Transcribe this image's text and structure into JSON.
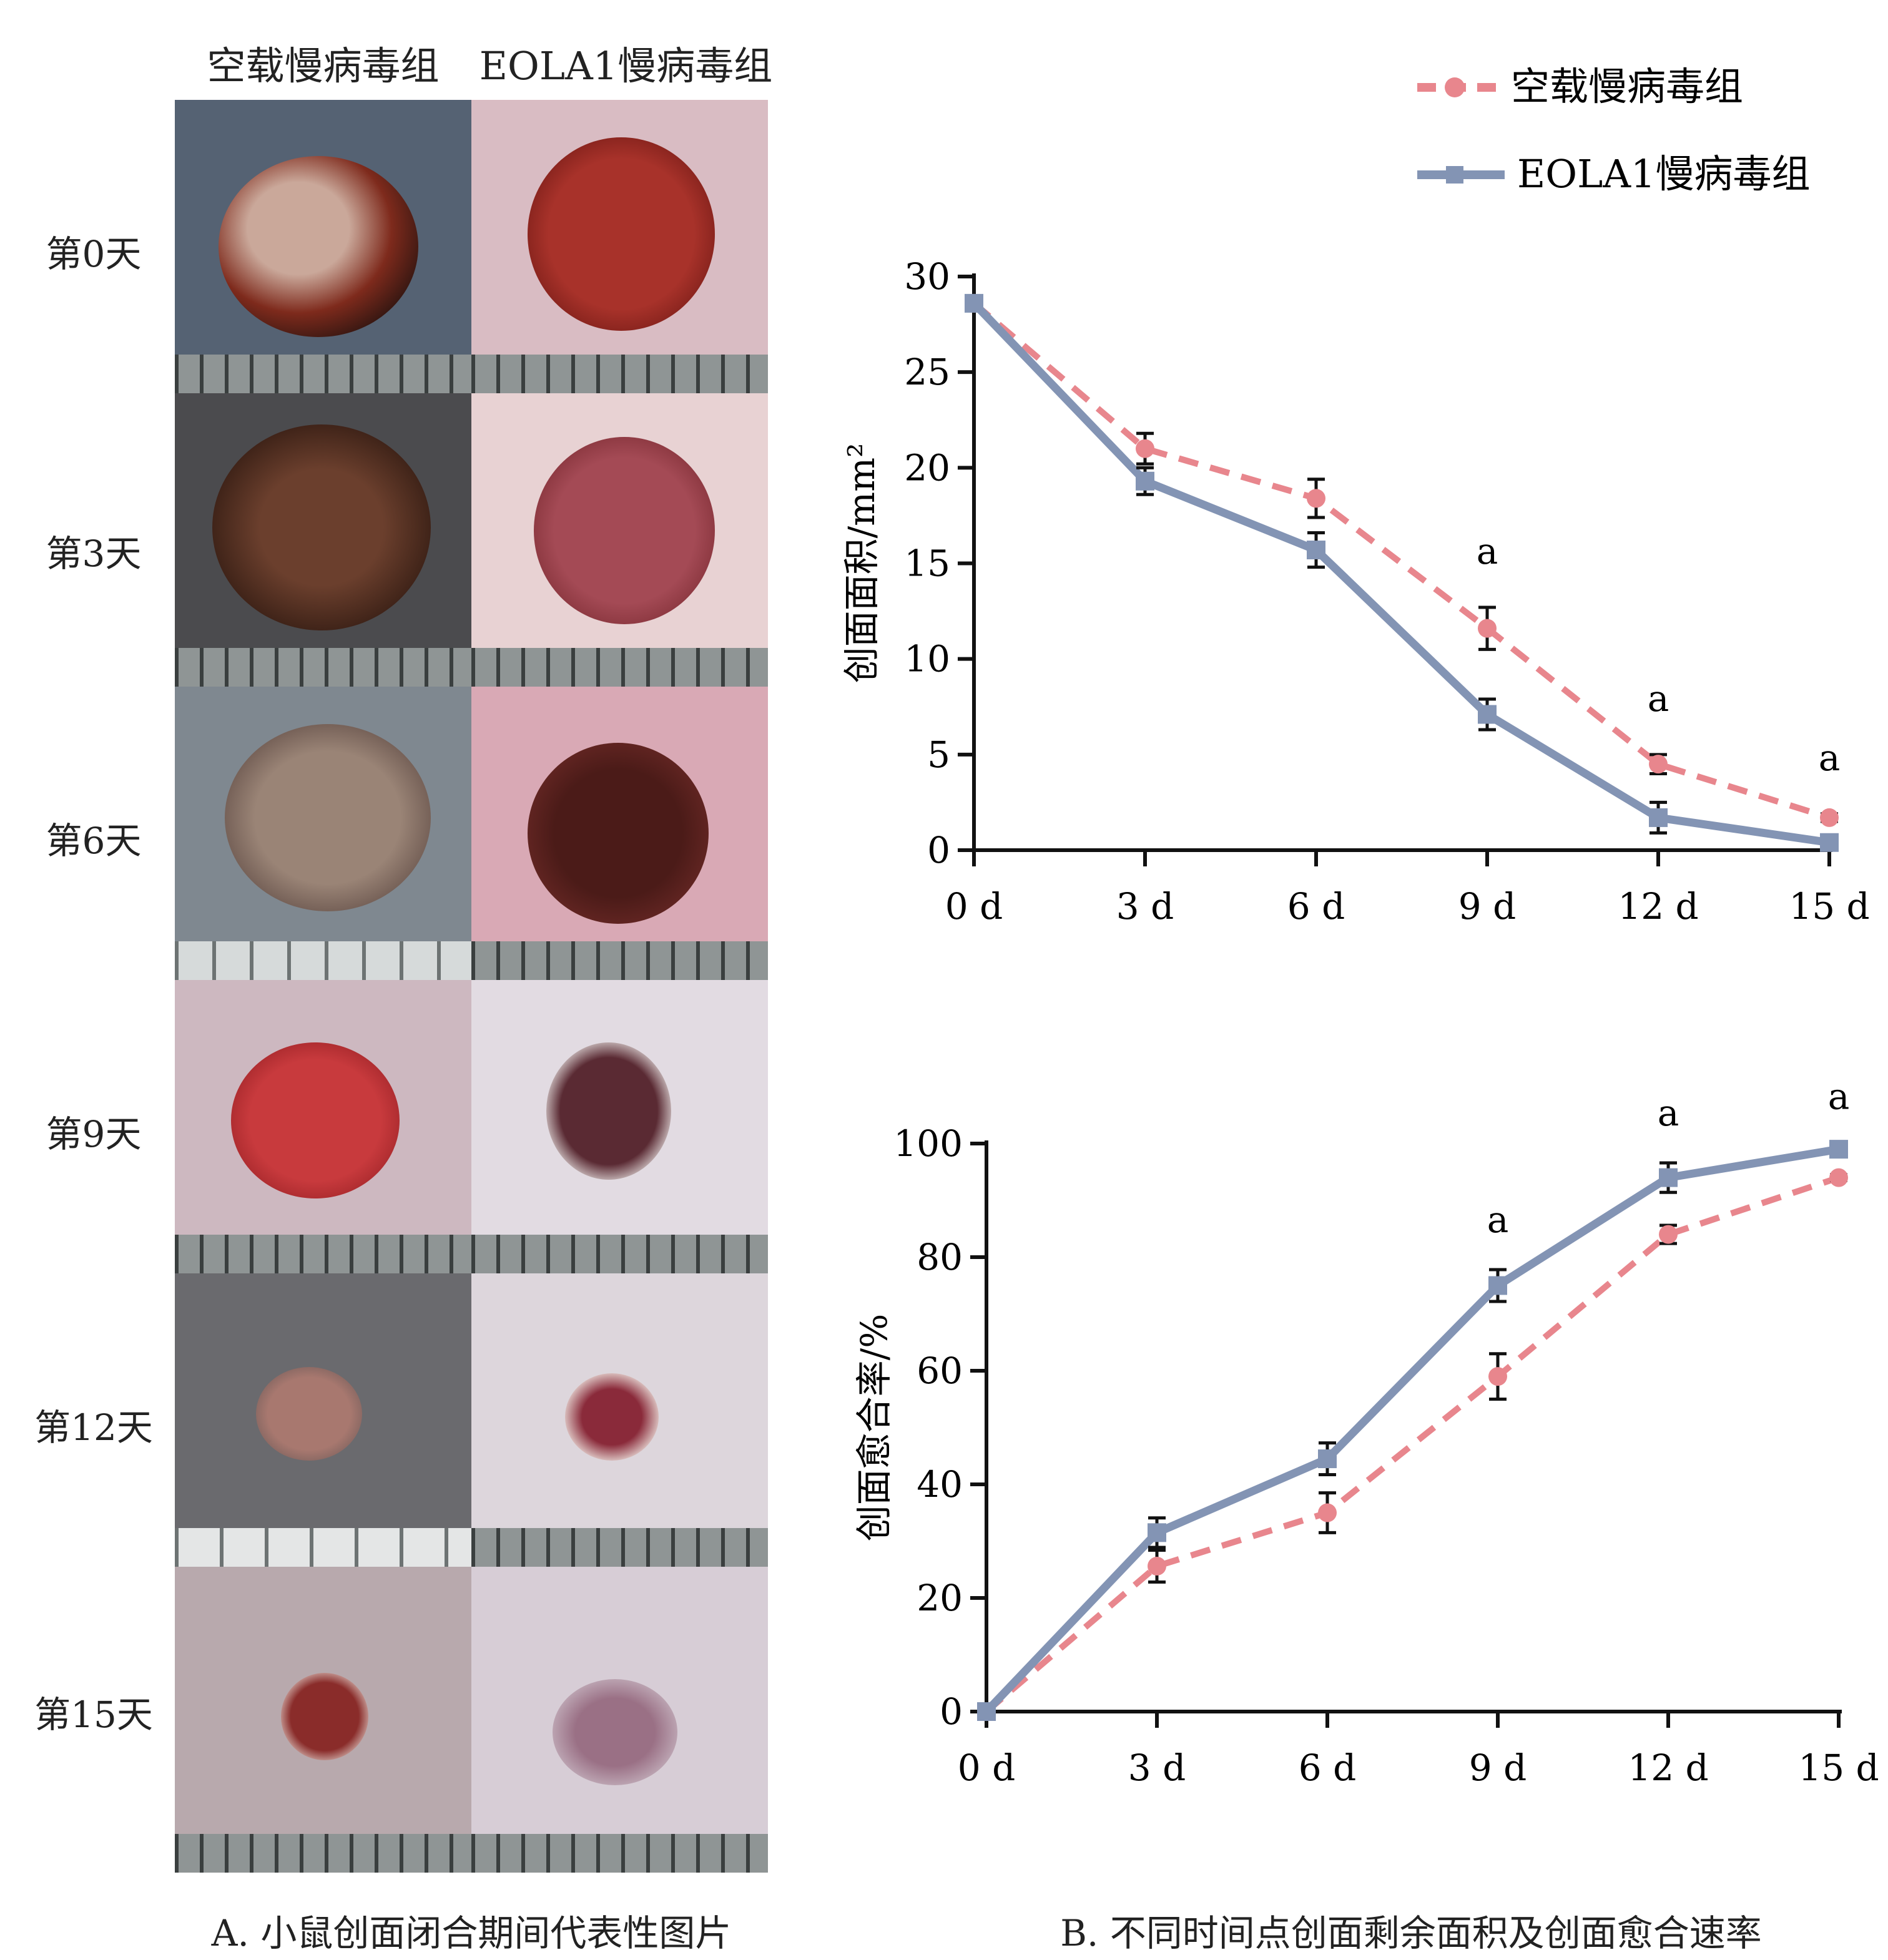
{
  "panel_a": {
    "headers": [
      "空载慢病毒组",
      "EOLA1慢病毒组"
    ],
    "rows": [
      "第0天",
      "第3天",
      "第6天",
      "第9天",
      "第12天",
      "第15天"
    ],
    "caption": "A. 小鼠创面闭合期间代表性图片"
  },
  "panel_b": {
    "caption": "B. 不同时间点创面剩余面积及创面愈合速率"
  },
  "legend": {
    "items": [
      "空载慢病毒组",
      "EOLA1慢病毒组"
    ]
  },
  "colors": {
    "empty_vector": "#e8868d",
    "eola1": "#8394b4",
    "error_bar": "#111111"
  },
  "chart_data": [
    {
      "type": "line",
      "categories": [
        "0 d",
        "3 d",
        "6 d",
        "9 d",
        "12 d",
        "15 d"
      ],
      "ylabel": "创面面积/mm²",
      "ylim": [
        0,
        30
      ],
      "yticks": [
        "0",
        "5",
        "10",
        "15",
        "20",
        "25",
        "30"
      ],
      "series": [
        {
          "name": "空载慢病毒组",
          "values": [
            28.6,
            21.0,
            18.4,
            11.6,
            4.5,
            1.7
          ],
          "errors": [
            0.3,
            0.8,
            1.0,
            1.1,
            0.5,
            0.2
          ],
          "style": "dashed-circle"
        },
        {
          "name": "EOLA1慢病毒组",
          "values": [
            28.6,
            19.3,
            15.7,
            7.1,
            1.7,
            0.4
          ],
          "errors": [
            0.3,
            0.7,
            0.9,
            0.8,
            0.8,
            0.2
          ],
          "style": "solid-square"
        }
      ],
      "annotations": [
        {
          "category": "9 d",
          "text": "a"
        },
        {
          "category": "12 d",
          "text": "a"
        },
        {
          "category": "15 d",
          "text": "a"
        }
      ]
    },
    {
      "type": "line",
      "categories": [
        "0 d",
        "3 d",
        "6 d",
        "9 d",
        "12 d",
        "15 d"
      ],
      "ylabel": "创面愈合率/%",
      "ylim": [
        0,
        100
      ],
      "yticks": [
        "0",
        "20",
        "40",
        "60",
        "80",
        "100"
      ],
      "series": [
        {
          "name": "空载慢病毒组",
          "values": [
            0,
            25.6,
            35,
            59,
            84,
            94
          ],
          "errors": [
            0,
            2.8,
            3.5,
            4,
            1.6,
            0.5
          ],
          "style": "dashed-circle"
        },
        {
          "name": "EOLA1慢病毒组",
          "values": [
            0,
            31.5,
            44.5,
            75,
            94,
            99
          ],
          "errors": [
            0,
            2.6,
            2.8,
            2.8,
            2.6,
            0.5
          ],
          "style": "solid-square"
        }
      ],
      "annotations": [
        {
          "category": "9 d",
          "text": "a"
        },
        {
          "category": "12 d",
          "text": "a"
        },
        {
          "category": "15 d",
          "text": "a"
        }
      ]
    }
  ]
}
